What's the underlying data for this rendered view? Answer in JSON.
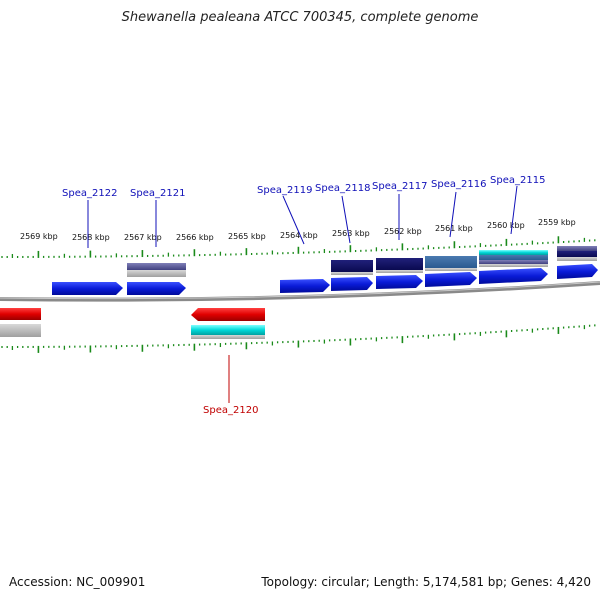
{
  "title": "Shewanella pealeana ATCC 700345, complete genome",
  "footer": {
    "accession": "Accession: NC_009901",
    "topology": "Topology: circular; Length: 5,174,581 bp; Genes: 4,420"
  },
  "ticks": [
    "2569 kbp",
    "2568 kbp",
    "2567 kbp",
    "2566 kbp",
    "2565 kbp",
    "2564 kbp",
    "2563 kbp",
    "2562 kbp",
    "2561 kbp",
    "2560 kbp",
    "2559 kbp"
  ],
  "gene_labels": {
    "g2122": "Spea_2122",
    "g2121": "Spea_2121",
    "g2119": "Spea_2119",
    "g2118": "Spea_2118",
    "g2117": "Spea_2117",
    "g2116": "Spea_2116",
    "g2115": "Spea_2115",
    "g2120": "Spea_2120"
  },
  "colors": {
    "forward_gene": "#0a1bd8",
    "reverse_gene": "#e00000",
    "rna_cyan": "#00d8d8",
    "label_blue": "#1010b8",
    "label_red": "#c00000",
    "tick_green": "#1a8a1a",
    "backbone": "#888888"
  }
}
